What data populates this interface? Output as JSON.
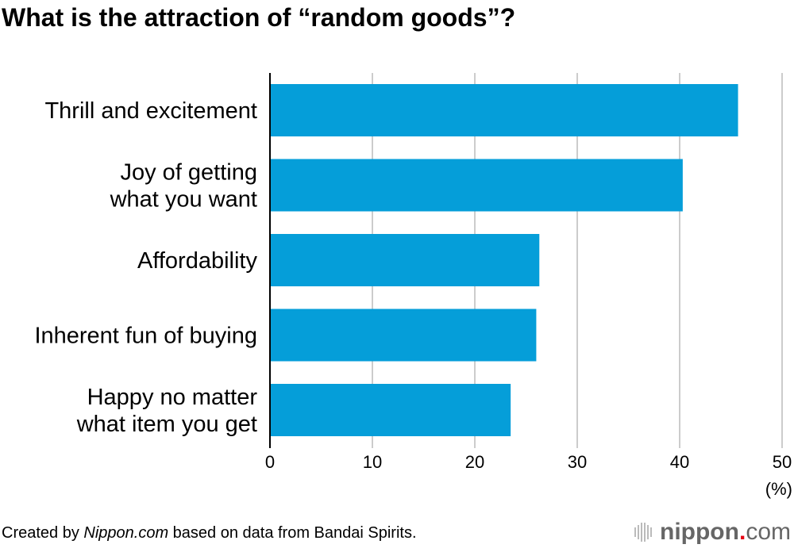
{
  "chart_data": {
    "type": "bar",
    "orientation": "horizontal",
    "title": "What is the attraction of “random goods”?",
    "categories": [
      [
        "Thrill and excitement"
      ],
      [
        "Joy of getting",
        "what you want"
      ],
      [
        "Affordability"
      ],
      [
        "Inherent fun of buying"
      ],
      [
        "Happy no matter",
        "what item you get"
      ]
    ],
    "values": [
      45.7,
      40.3,
      26.3,
      26.0,
      23.5
    ],
    "xlim": [
      0,
      50
    ],
    "xticks": [
      "0",
      "10",
      "20",
      "30",
      "40",
      "50"
    ],
    "unit_label": "(%)",
    "grid": true,
    "bar_color": "#059ed9",
    "grid_color": "#cccccc"
  },
  "footer": {
    "prefix": "Created by ",
    "source_site": "Nippon.com",
    "suffix": " based on data from Bandai Spirits."
  },
  "logo": {
    "name": "nippon",
    "dot": ".",
    "tld": "com"
  }
}
